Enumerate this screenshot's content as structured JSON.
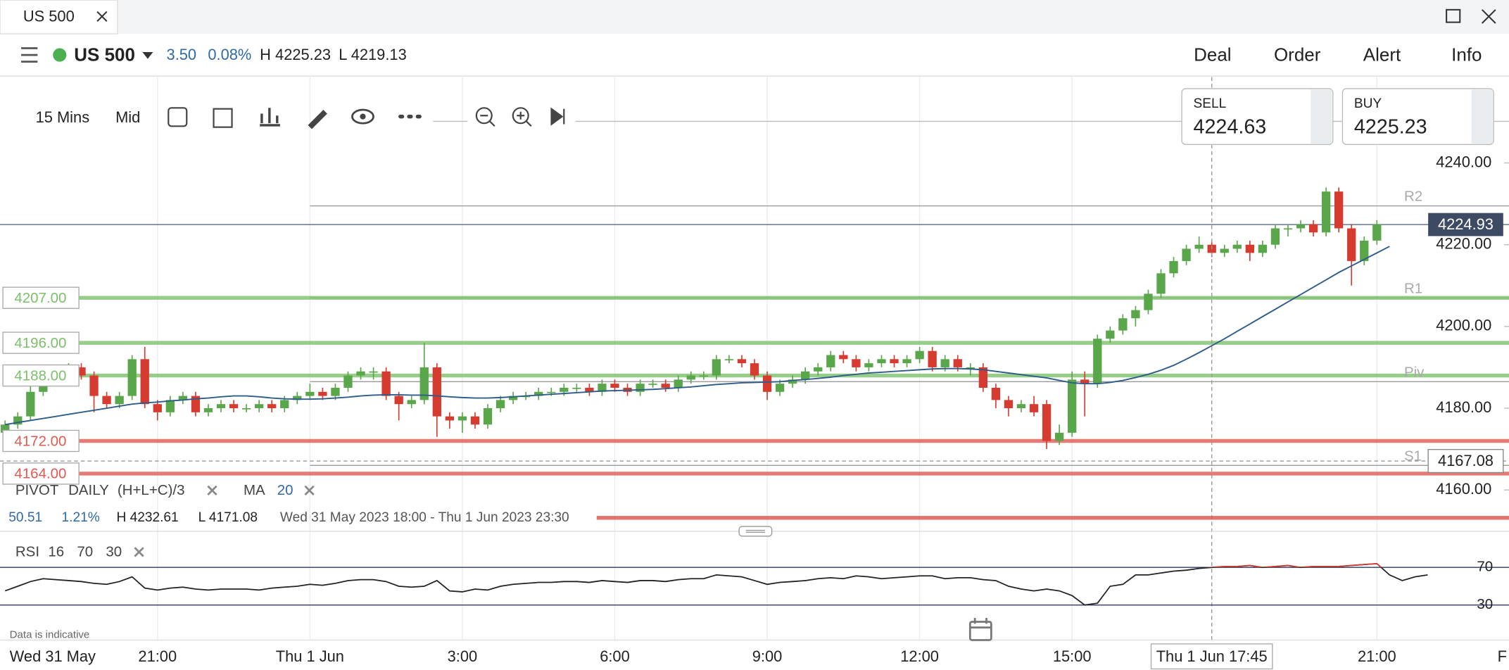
{
  "tab": {
    "title": "US 500"
  },
  "header": {
    "symbol": "US 500",
    "change": "3.50",
    "change_pct": "0.08%",
    "high": "H 4225.23",
    "low": "L 4219.13"
  },
  "menu": [
    "Deal",
    "Order",
    "Alert",
    "Info"
  ],
  "toolbar": {
    "interval": "15 Mins",
    "price_type": "Mid"
  },
  "quote": {
    "sell_label": "SELL",
    "sell": "4224.63",
    "buy_label": "BUY",
    "buy": "4225.23"
  },
  "chart_data": [
    {
      "type": "candlestick",
      "up_color": "#5aa64a",
      "down_color": "#d63b30",
      "ylim": [
        4148,
        4261
      ],
      "yticks": [
        {
          "value": 4160,
          "label": "4160.00"
        },
        {
          "value": 4180,
          "label": "4180.00"
        },
        {
          "value": 4200,
          "label": "4200.00"
        },
        {
          "value": 4220,
          "label": "4220.00"
        },
        {
          "value": 4240,
          "label": "4240.00"
        }
      ],
      "xlim": [
        -0.4,
        118.4
      ],
      "xticks": [
        {
          "value": 12,
          "label": "21:00"
        },
        {
          "value": 24,
          "label": "Thu 1 Jun"
        },
        {
          "value": 36,
          "label": "3:00"
        },
        {
          "value": 48,
          "label": "6:00"
        },
        {
          "value": 60,
          "label": "9:00"
        },
        {
          "value": 72,
          "label": "12:00"
        },
        {
          "value": 84,
          "label": "15:00"
        },
        {
          "value": 108,
          "label": "21:00"
        }
      ],
      "grid": true,
      "start_label": "Wed 31 May",
      "end_label": "F",
      "note": "Data is indicative",
      "candles": [
        [
          4174,
          4177,
          4173,
          4176
        ],
        [
          4176,
          4179,
          4175,
          4178
        ],
        [
          4178,
          4186,
          4177,
          4184
        ],
        [
          4184,
          4189,
          4183,
          4188
        ],
        [
          4188,
          4189,
          4186,
          4187
        ],
        [
          4187,
          4191,
          4186,
          4190
        ],
        [
          4190,
          4191,
          4187,
          4188
        ],
        [
          4188,
          4189,
          4179,
          4183
        ],
        [
          4183,
          4184,
          4180,
          4181
        ],
        [
          4181,
          4184,
          4180,
          4183
        ],
        [
          4183,
          4193,
          4182,
          4192
        ],
        [
          4192,
          4195,
          4180,
          4181
        ],
        [
          4181,
          4182,
          4177,
          4179
        ],
        [
          4179,
          4183,
          4178,
          4182
        ],
        [
          4182,
          4184,
          4181,
          4183
        ],
        [
          4183,
          4184,
          4178,
          4179
        ],
        [
          4179,
          4181,
          4178,
          4180
        ],
        [
          4180,
          4182,
          4179,
          4181
        ],
        [
          4181,
          4182,
          4179,
          4180
        ],
        [
          4180,
          4181,
          4179,
          4180
        ],
        [
          4180,
          4182,
          4179,
          4181
        ],
        [
          4181,
          4182,
          4179,
          4180
        ],
        [
          4180,
          4183,
          4179,
          4182
        ],
        [
          4182,
          4184,
          4181,
          4183
        ],
        [
          4183,
          4186,
          4182,
          4184
        ],
        [
          4184,
          4185,
          4182,
          4183
        ],
        [
          4183,
          4186,
          4182,
          4185
        ],
        [
          4185,
          4189,
          4184,
          4188
        ],
        [
          4188,
          4190,
          4187,
          4189
        ],
        [
          4189,
          4190,
          4187,
          4189
        ],
        [
          4189,
          4190,
          4182,
          4183
        ],
        [
          4183,
          4184,
          4177,
          4181
        ],
        [
          4181,
          4183,
          4180,
          4182
        ],
        [
          4182,
          4196,
          4181,
          4190
        ],
        [
          4190,
          4191,
          4173,
          4178
        ],
        [
          4178,
          4179,
          4175,
          4177
        ],
        [
          4177,
          4179,
          4174,
          4178
        ],
        [
          4178,
          4179,
          4175,
          4176
        ],
        [
          4176,
          4181,
          4175,
          4180
        ],
        [
          4180,
          4183,
          4179,
          4182
        ],
        [
          4182,
          4184,
          4181,
          4183
        ],
        [
          4183,
          4184,
          4182,
          4183
        ],
        [
          4183,
          4185,
          4182,
          4184
        ],
        [
          4184,
          4185,
          4183,
          4184
        ],
        [
          4184,
          4186,
          4183,
          4185
        ],
        [
          4185,
          4186,
          4184,
          4185
        ],
        [
          4185,
          4186,
          4183,
          4184
        ],
        [
          4184,
          4187,
          4183,
          4186
        ],
        [
          4186,
          4187,
          4184,
          4185
        ],
        [
          4185,
          4186,
          4183,
          4184
        ],
        [
          4184,
          4187,
          4183,
          4186
        ],
        [
          4186,
          4187,
          4185,
          4186
        ],
        [
          4186,
          4187,
          4184,
          4185
        ],
        [
          4185,
          4188,
          4184,
          4187
        ],
        [
          4187,
          4189,
          4186,
          4188
        ],
        [
          4188,
          4189,
          4187,
          4188
        ],
        [
          4188,
          4193,
          4187,
          4192
        ],
        [
          4192,
          4193,
          4191,
          4192
        ],
        [
          4192,
          4193,
          4190,
          4191
        ],
        [
          4191,
          4192,
          4187,
          4188
        ],
        [
          4188,
          4189,
          4182,
          4184
        ],
        [
          4184,
          4187,
          4183,
          4186
        ],
        [
          4186,
          4188,
          4185,
          4187
        ],
        [
          4187,
          4190,
          4186,
          4189
        ],
        [
          4189,
          4191,
          4188,
          4190
        ],
        [
          4190,
          4194,
          4189,
          4193
        ],
        [
          4193,
          4194,
          4191,
          4192
        ],
        [
          4192,
          4193,
          4189,
          4190
        ],
        [
          4190,
          4192,
          4189,
          4191
        ],
        [
          4191,
          4193,
          4190,
          4192
        ],
        [
          4192,
          4193,
          4190,
          4191
        ],
        [
          4191,
          4193,
          4190,
          4192
        ],
        [
          4192,
          4195,
          4191,
          4194
        ],
        [
          4194,
          4195,
          4189,
          4190
        ],
        [
          4190,
          4193,
          4189,
          4192
        ],
        [
          4192,
          4193,
          4189,
          4190
        ],
        [
          4190,
          4191,
          4188,
          4190
        ],
        [
          4190,
          4191,
          4184,
          4185
        ],
        [
          4185,
          4186,
          4180,
          4182
        ],
        [
          4182,
          4183,
          4178,
          4180
        ],
        [
          4180,
          4182,
          4179,
          4181
        ],
        [
          4181,
          4183,
          4178,
          4179
        ],
        [
          4181,
          4182,
          4170,
          4172
        ],
        [
          4172,
          4176,
          4171,
          4174
        ],
        [
          4174,
          4189,
          4173,
          4187
        ],
        [
          4187,
          4189,
          4178,
          4186
        ],
        [
          4186,
          4198,
          4185,
          4197
        ],
        [
          4197,
          4200,
          4196,
          4199
        ],
        [
          4199,
          4203,
          4198,
          4202
        ],
        [
          4202,
          4205,
          4200,
          4204
        ],
        [
          4204,
          4209,
          4203,
          4208
        ],
        [
          4208,
          4214,
          4207,
          4213
        ],
        [
          4213,
          4217,
          4212,
          4216
        ],
        [
          4216,
          4220,
          4215,
          4219
        ],
        [
          4219,
          4222,
          4218,
          4220
        ],
        [
          4220,
          4221,
          4217,
          4218
        ],
        [
          4218,
          4220,
          4217,
          4219
        ],
        [
          4219,
          4221,
          4218,
          4220
        ],
        [
          4220,
          4221,
          4216,
          4218
        ],
        [
          4218,
          4221,
          4217,
          4220
        ],
        [
          4220,
          4225,
          4219,
          4224
        ],
        [
          4224,
          4225,
          4222,
          4224
        ],
        [
          4224,
          4226,
          4223,
          4225
        ],
        [
          4225,
          4226,
          4222,
          4223
        ],
        [
          4223,
          4234,
          4222,
          4233
        ],
        [
          4233,
          4234,
          4223,
          4224
        ],
        [
          4224,
          4225,
          4210,
          4216
        ],
        [
          4216,
          4222,
          4215,
          4221
        ],
        [
          4221,
          4226,
          4220,
          4225
        ]
      ],
      "ma": {
        "name": "MA",
        "period": 20,
        "color": "#2f5d8a",
        "values": [
          4176,
          4176.5,
          4177,
          4177.5,
          4178,
          4178.5,
          4179,
          4179.5,
          4180,
          4180.5,
          4181,
          4181.3,
          4181.5,
          4181.8,
          4182,
          4182.3,
          4182.5,
          4182.8,
          4183,
          4183,
          4182.8,
          4182.5,
          4182.3,
          4182.2,
          4182.2,
          4182.3,
          4182.5,
          4182.7,
          4183,
          4183.2,
          4183.3,
          4183.3,
          4183.2,
          4183.2,
          4183,
          4182.8,
          4182.6,
          4182.5,
          4182.5,
          4182.6,
          4182.8,
          4183,
          4183.2,
          4183.4,
          4183.6,
          4183.8,
          4184,
          4184.2,
          4184.3,
          4184.4,
          4184.5,
          4184.6,
          4184.8,
          4185,
          4185.2,
          4185.5,
          4185.8,
          4186,
          4186.2,
          4186.3,
          4186.4,
          4186.5,
          4186.8,
          4187,
          4187.3,
          4187.6,
          4188,
          4188.3,
          4188.6,
          4188.8,
          4189,
          4189.2,
          4189.4,
          4189.6,
          4189.7,
          4189.7,
          4189.6,
          4189.4,
          4189,
          4188.6,
          4188.2,
          4187.8,
          4187.4,
          4186.8,
          4186.2,
          4186,
          4186,
          4186.3,
          4186.8,
          4187.5,
          4188.3,
          4189.3,
          4190.5,
          4192,
          4193.6,
          4195.3,
          4197,
          4198.8,
          4200.6,
          4202.4,
          4204.2,
          4206,
          4207.8,
          4209.6,
          4211.4,
          4213.2,
          4214.8,
          4216.4,
          4218,
          4219.6
        ]
      },
      "levels": [
        {
          "value": 4207,
          "label": "4207.00",
          "color": "#7cc06a"
        },
        {
          "value": 4196,
          "label": "4196.00",
          "color": "#7cc06a"
        },
        {
          "value": 4188,
          "label": "4188.00",
          "color": "#7cc06a"
        },
        {
          "value": 4172,
          "label": "4172.00",
          "color": "#e05a52"
        },
        {
          "value": 4164,
          "label": "4164.00",
          "color": "#e05a52"
        }
      ],
      "pivots": [
        {
          "name": "R2",
          "value": 4229.5
        },
        {
          "name": "R1",
          "value": 4207
        },
        {
          "name": "Piv",
          "value": 4186.5
        },
        {
          "name": "S1",
          "value": 4166
        }
      ],
      "last_price": 4224.93,
      "crosshair": {
        "x": 95,
        "x_label": "Thu 1 Jun 17:45",
        "y": 4167.08
      },
      "pivot_legend": {
        "name": "PIVOT",
        "period": "DAILY",
        "formula": "(H+L+C)/3"
      },
      "stats": {
        "change": "50.51",
        "change_pct": "1.21%",
        "high": "H 4232.61",
        "low": "L 4171.08",
        "range": "Wed 31 May 2023 18:00 - Thu 1 Jun 2023 23:30"
      }
    },
    {
      "type": "line",
      "name": "RSI",
      "period": 16,
      "upper": 70,
      "lower": 30,
      "color": "#222222",
      "over_color": "#d63b30",
      "ylim": [
        0,
        95
      ],
      "yticks": [
        30,
        70
      ],
      "values": [
        45,
        50,
        55,
        58,
        57,
        56,
        55,
        53,
        52,
        55,
        60,
        48,
        46,
        48,
        49,
        47,
        46,
        47,
        47,
        47,
        46,
        48,
        49,
        50,
        52,
        51,
        53,
        56,
        57,
        57,
        55,
        50,
        49,
        50,
        56,
        45,
        44,
        47,
        46,
        50,
        52,
        53,
        54,
        54,
        55,
        55,
        54,
        56,
        55,
        54,
        56,
        56,
        55,
        57,
        58,
        58,
        62,
        61,
        60,
        56,
        52,
        54,
        55,
        56,
        58,
        59,
        58,
        61,
        60,
        58,
        59,
        60,
        61,
        61,
        58,
        59,
        59,
        57,
        56,
        50,
        47,
        45,
        47,
        45,
        40,
        30,
        32,
        50,
        52,
        62,
        62,
        64,
        66,
        67,
        69,
        70,
        71,
        71,
        72,
        70,
        71,
        72,
        70,
        71,
        71,
        71,
        72,
        73,
        74,
        62,
        56,
        60,
        62
      ]
    }
  ]
}
